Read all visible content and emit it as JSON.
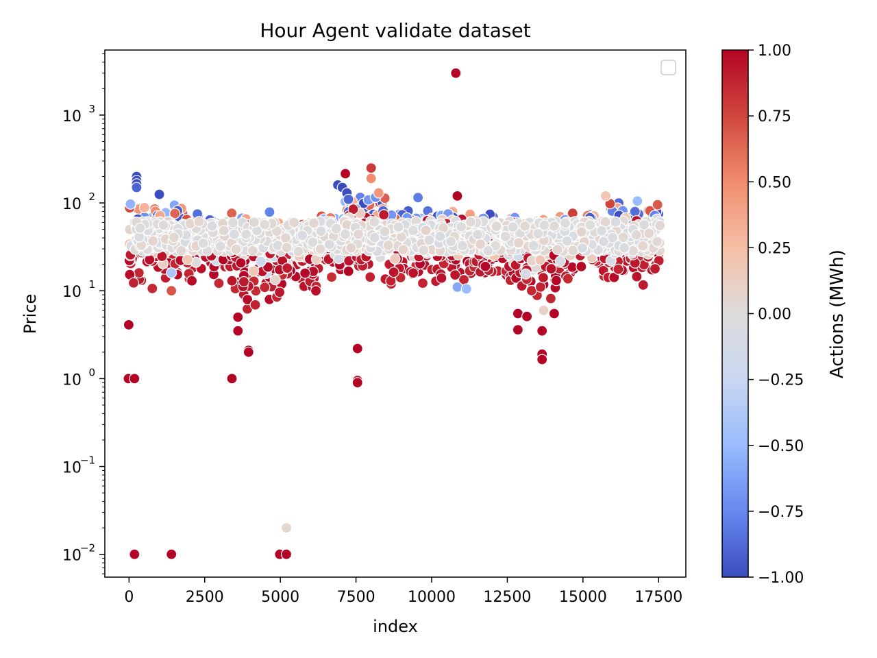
{
  "chart_data": {
    "type": "scatter",
    "title": "Hour Agent validate dataset",
    "xlabel": "index",
    "ylabel": "Price",
    "xlim": [
      -800,
      18400
    ],
    "ylim": [
      0.0055,
      5500
    ],
    "yscale": "log",
    "x_ticks": [
      0,
      2500,
      5000,
      7500,
      10000,
      12500,
      15000,
      17500
    ],
    "x_tick_labels": [
      "0",
      "2500",
      "5000",
      "7500",
      "10000",
      "12500",
      "15000",
      "17500"
    ],
    "y_ticks": [
      0.01,
      0.1,
      1,
      10,
      100,
      1000
    ],
    "y_tick_labels": [
      {
        "base": "10",
        "exp": "−2"
      },
      {
        "base": "10",
        "exp": "−1"
      },
      {
        "base": "10",
        "exp": "0"
      },
      {
        "base": "10",
        "exp": "1"
      },
      {
        "base": "10",
        "exp": "2"
      },
      {
        "base": "10",
        "exp": "3"
      }
    ],
    "grid": false,
    "legend": {
      "placement": "upper-right",
      "entries": []
    },
    "colorbar": {
      "label": "Actions (MWh)",
      "colormap": "coolwarm",
      "range": [
        -1,
        1
      ],
      "ticks": [
        1.0,
        0.75,
        0.5,
        0.25,
        0.0,
        -0.25,
        -0.5,
        -0.75,
        -1.0
      ],
      "tick_labels": [
        "1.00",
        "0.75",
        "0.50",
        "0.25",
        "0.00",
        "−0.25",
        "−0.50",
        "−0.75",
        "−1.00"
      ],
      "stops": [
        "#3b4cc0",
        "#6788ee",
        "#9abbff",
        "#c9d7f0",
        "#dddcdc",
        "#f6bfa6",
        "#f18d6f",
        "#d0473d",
        "#b40426"
      ]
    },
    "points": [
      [
        10800,
        3000,
        1
      ],
      [
        10850,
        120,
        1
      ],
      [
        -10,
        4.1,
        1
      ],
      [
        -20,
        1.0,
        1
      ],
      [
        180,
        1.0,
        1
      ],
      [
        180,
        0.01,
        1
      ],
      [
        1400,
        0.01,
        1
      ],
      [
        4980,
        0.01,
        1
      ],
      [
        5200,
        0.01,
        1
      ],
      [
        5200,
        0.02,
        0.05
      ],
      [
        3400,
        1.0,
        1
      ],
      [
        3600,
        3.5,
        1
      ],
      [
        3600,
        5.0,
        1
      ],
      [
        3950,
        2.1,
        1
      ],
      [
        3950,
        2.0,
        1
      ],
      [
        7550,
        2.2,
        1
      ],
      [
        7550,
        0.95,
        1
      ],
      [
        7550,
        0.9,
        1
      ],
      [
        12850,
        3.6,
        1
      ],
      [
        12850,
        5.5,
        1
      ],
      [
        13150,
        5.1,
        1
      ],
      [
        13650,
        1.9,
        1
      ],
      [
        13650,
        1.65,
        1
      ],
      [
        13650,
        3.5,
        1
      ],
      [
        14050,
        5.5,
        1
      ],
      [
        13700,
        6.0,
        0.1
      ],
      [
        8000,
        250,
        0.8
      ],
      [
        7150,
        215,
        1
      ],
      [
        8000,
        190,
        0.5
      ],
      [
        8250,
        130,
        0.45
      ],
      [
        9550,
        115,
        -0.8
      ],
      [
        15750,
        120,
        0.2
      ],
      [
        16800,
        105,
        -0.5
      ],
      [
        250,
        200,
        -1
      ],
      [
        250,
        180,
        -1
      ],
      [
        250,
        165,
        -1
      ],
      [
        250,
        150,
        -0.9
      ],
      [
        1000,
        125,
        -1
      ],
      [
        6900,
        160,
        -1
      ],
      [
        7050,
        150,
        -1
      ],
      [
        7200,
        130,
        -1
      ],
      [
        7250,
        110,
        -0.9
      ],
      [
        10850,
        11,
        -0.6
      ],
      [
        11150,
        10.5,
        -0.5
      ],
      [
        1400,
        16,
        -0.4
      ],
      [
        1400,
        10,
        0.7
      ]
    ],
    "clusters": [
      {
        "x": [
          0,
          1800
        ],
        "y_low": [
          8,
          25
        ],
        "y_high": [
          70,
          110
        ]
      },
      {
        "x": [
          1800,
          3400
        ],
        "y_low": [
          12,
          25
        ],
        "y_high": [
          55,
          80
        ]
      },
      {
        "x": [
          3400,
          4900
        ],
        "y_low": [
          6,
          15
        ],
        "y_high": [
          60,
          85
        ]
      },
      {
        "x": [
          4900,
          6200
        ],
        "y_low": [
          8,
          15
        ],
        "y_high": [
          50,
          65
        ]
      },
      {
        "x": [
          6200,
          7000
        ],
        "y_low": [
          12,
          25
        ],
        "y_high": [
          60,
          75
        ]
      },
      {
        "x": [
          7000,
          8600
        ],
        "y_low": [
          10,
          30
        ],
        "y_high": [
          80,
          130
        ]
      },
      {
        "x": [
          8600,
          9800
        ],
        "y_low": [
          10,
          25
        ],
        "y_high": [
          60,
          85
        ]
      },
      {
        "x": [
          9800,
          11400
        ],
        "y_low": [
          12,
          30
        ],
        "y_high": [
          70,
          90
        ]
      },
      {
        "x": [
          11400,
          12800
        ],
        "y_low": [
          10,
          20
        ],
        "y_high": [
          60,
          90
        ]
      },
      {
        "x": [
          12800,
          14200
        ],
        "y_low": [
          6,
          15
        ],
        "y_high": [
          55,
          70
        ]
      },
      {
        "x": [
          14200,
          15800
        ],
        "y_low": [
          11,
          25
        ],
        "y_high": [
          60,
          80
        ]
      },
      {
        "x": [
          15800,
          17550
        ],
        "y_low": [
          11,
          25
        ],
        "y_high": [
          80,
          110
        ]
      }
    ]
  }
}
